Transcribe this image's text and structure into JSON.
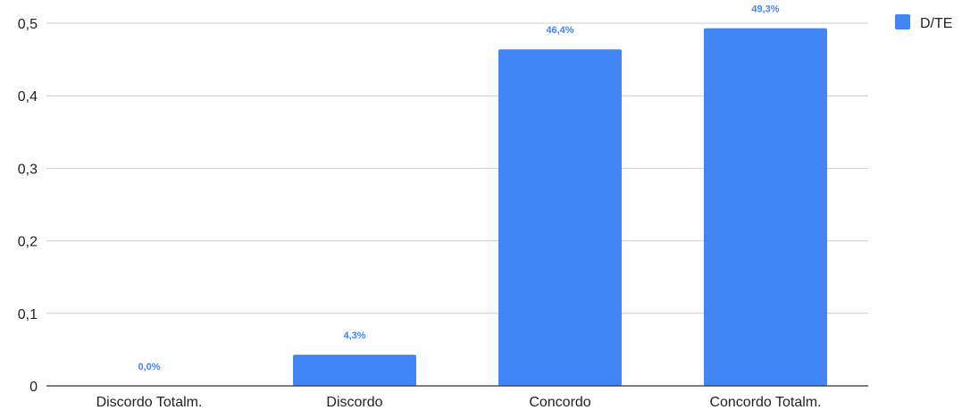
{
  "chart_data": {
    "type": "bar",
    "categories": [
      "Discordo Totalm.",
      "Discordo",
      "Concordo",
      "Concordo Totalm."
    ],
    "series": [
      {
        "name": "D/TE",
        "values": [
          0.0,
          0.043,
          0.464,
          0.493
        ]
      }
    ],
    "data_labels": [
      "0,0%",
      "4,3%",
      "46,4%",
      "49,3%"
    ],
    "y_ticks": [
      "0",
      "0,1",
      "0,2",
      "0,3",
      "0,4",
      "0,5"
    ],
    "ylim": [
      0,
      0.5
    ],
    "grid": true,
    "legend_position": "top-right",
    "colors": {
      "bar": "#4285f4",
      "label": "#4285f4",
      "grid": "#cccccc",
      "axis": "#333333"
    }
  }
}
